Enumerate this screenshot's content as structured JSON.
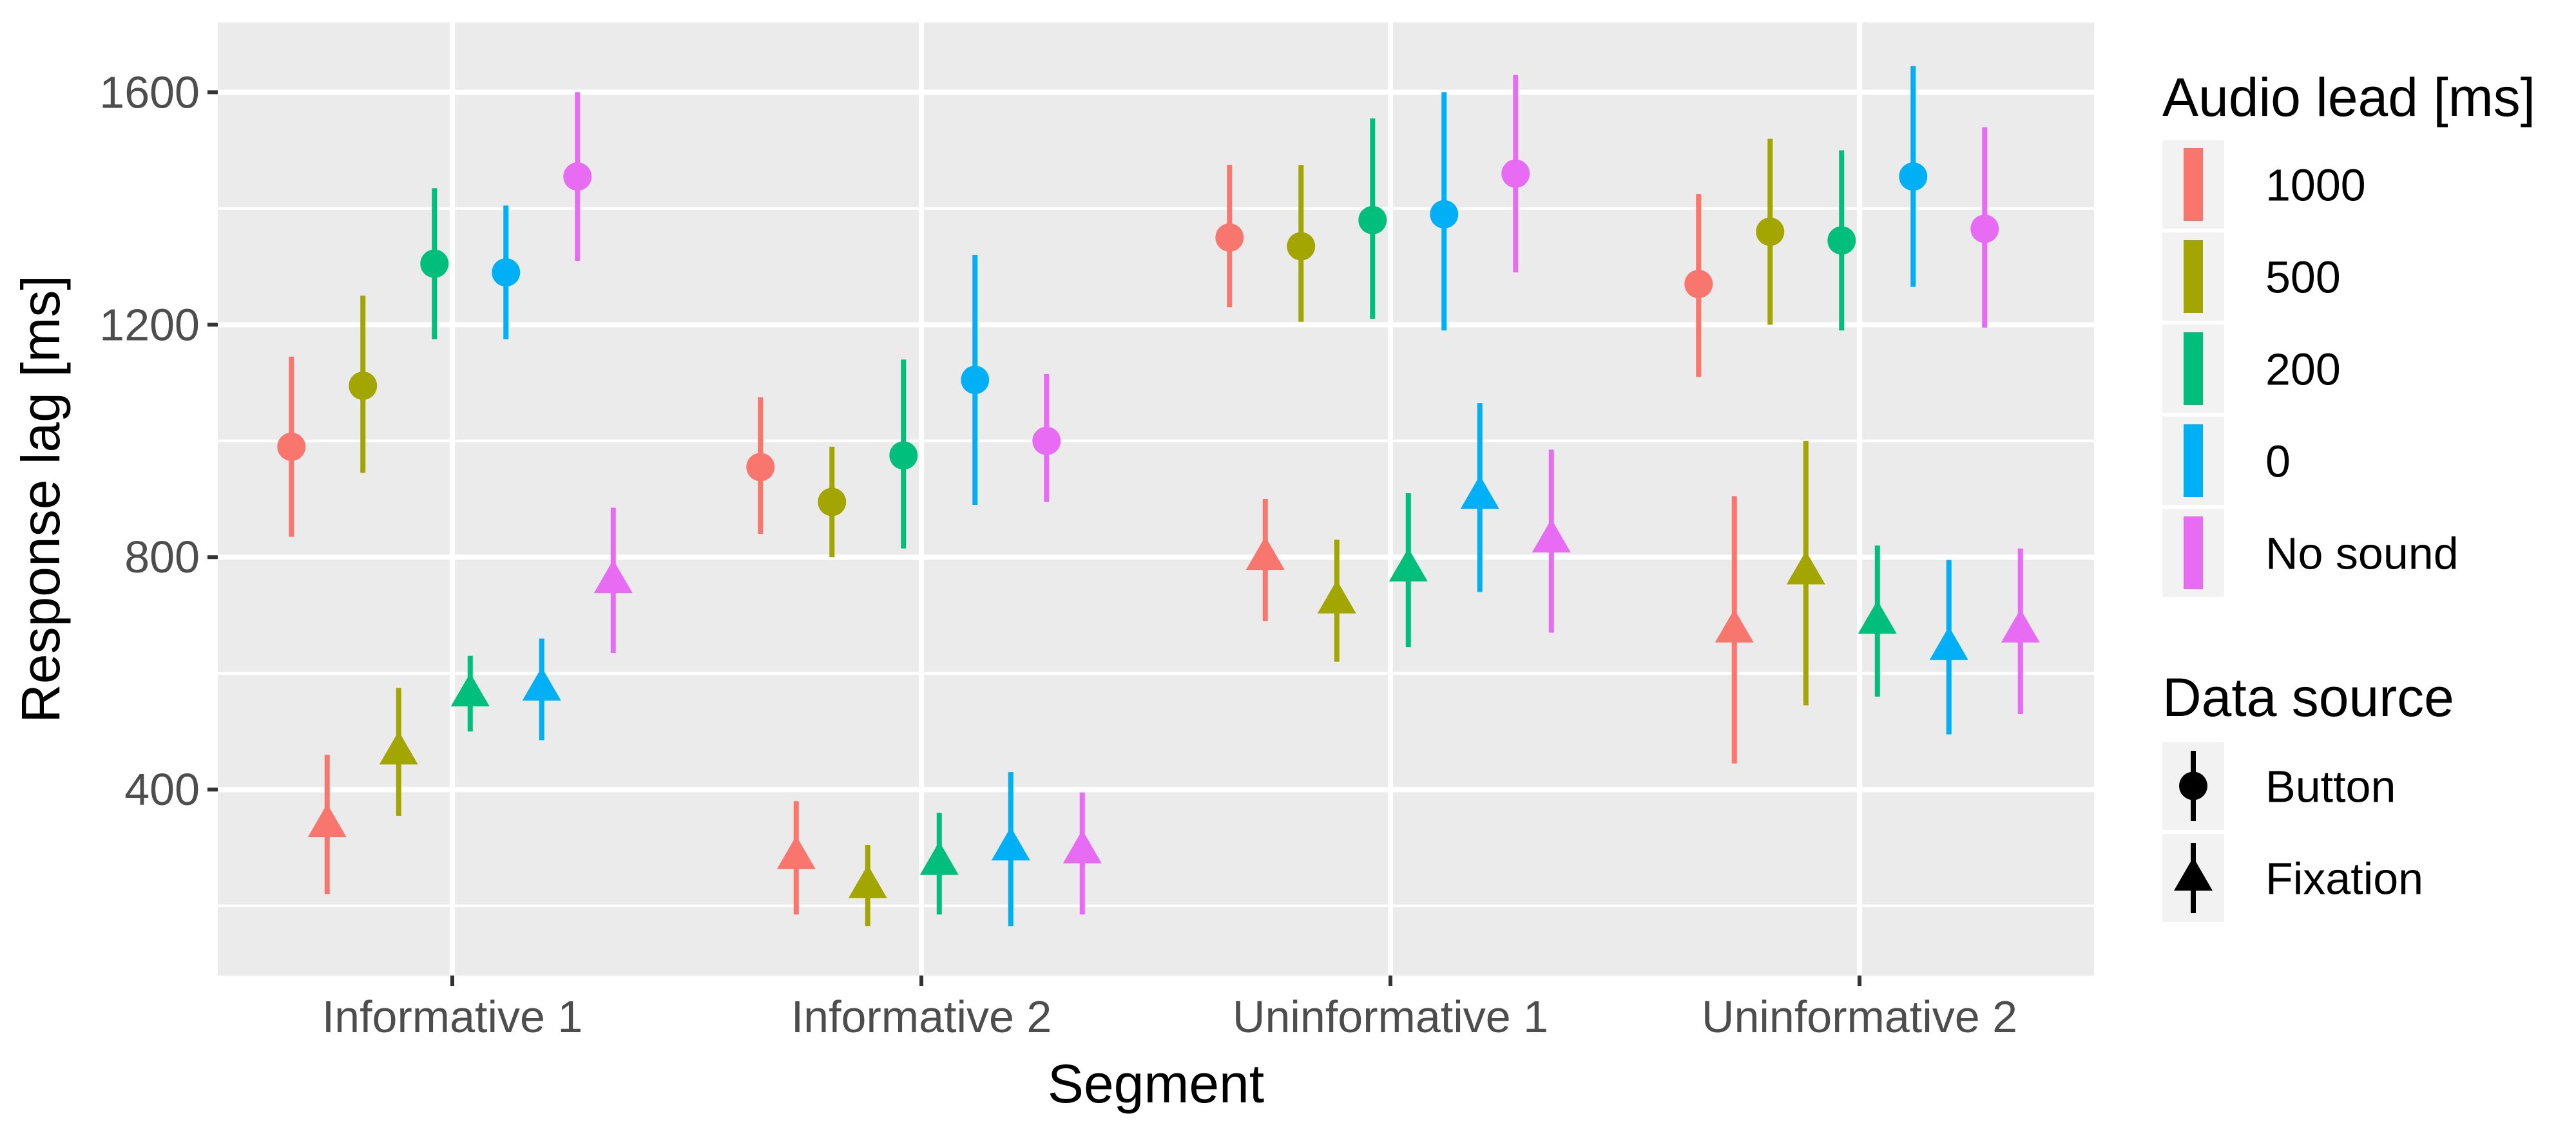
{
  "chart_data": {
    "type": "scatter",
    "subtype": "pointrange",
    "title": "",
    "xlabel": "Segment",
    "ylabel": "Response lag [ms]",
    "categories": [
      "Informative 1",
      "Informative 2",
      "Uninformative 1",
      "Uninformative 2"
    ],
    "ylim": [
      80,
      1720
    ],
    "yticks": [
      400,
      800,
      1200,
      1600
    ],
    "y_tick_labels": [
      "400",
      "800",
      "1200",
      "1600"
    ],
    "grid": true,
    "legend_position": "right",
    "color_legend": {
      "title": "Audio lead [ms]",
      "entries": [
        {
          "label": "1000",
          "color": "#F8766D"
        },
        {
          "label": "500",
          "color": "#A3A500"
        },
        {
          "label": "200",
          "color": "#00BF7D"
        },
        {
          "label": "0",
          "color": "#00B0F6"
        },
        {
          "label": "No sound",
          "color": "#E76BF3"
        }
      ]
    },
    "shape_legend": {
      "title": "Data source",
      "entries": [
        {
          "label": "Button",
          "shape": "circle"
        },
        {
          "label": "Fixation",
          "shape": "triangle"
        }
      ]
    },
    "series": [
      {
        "audio_lead": "1000",
        "source": "Button",
        "mean": [
          990,
          955,
          1350,
          1270
        ],
        "low": [
          835,
          840,
          1230,
          1110
        ],
        "high": [
          1145,
          1075,
          1475,
          1425
        ]
      },
      {
        "audio_lead": "500",
        "source": "Button",
        "mean": [
          1095,
          895,
          1335,
          1360
        ],
        "low": [
          945,
          800,
          1205,
          1200
        ],
        "high": [
          1250,
          990,
          1475,
          1520
        ]
      },
      {
        "audio_lead": "200",
        "source": "Button",
        "mean": [
          1305,
          975,
          1380,
          1345
        ],
        "low": [
          1175,
          815,
          1210,
          1190
        ],
        "high": [
          1435,
          1140,
          1555,
          1500
        ]
      },
      {
        "audio_lead": "0",
        "source": "Button",
        "mean": [
          1290,
          1105,
          1390,
          1455
        ],
        "low": [
          1175,
          890,
          1190,
          1265
        ],
        "high": [
          1405,
          1320,
          1600,
          1645
        ]
      },
      {
        "audio_lead": "No sound",
        "source": "Button",
        "mean": [
          1455,
          1000,
          1460,
          1365
        ],
        "low": [
          1310,
          895,
          1290,
          1195
        ],
        "high": [
          1600,
          1115,
          1630,
          1540
        ]
      },
      {
        "audio_lead": "1000",
        "source": "Fixation",
        "mean": [
          340,
          285,
          800,
          675
        ],
        "low": [
          220,
          185,
          690,
          445
        ],
        "high": [
          460,
          380,
          900,
          905
        ]
      },
      {
        "audio_lead": "500",
        "source": "Fixation",
        "mean": [
          465,
          235,
          725,
          775
        ],
        "low": [
          355,
          165,
          620,
          545
        ],
        "high": [
          575,
          305,
          830,
          1000
        ]
      },
      {
        "audio_lead": "200",
        "source": "Fixation",
        "mean": [
          565,
          275,
          780,
          690
        ],
        "low": [
          500,
          185,
          645,
          560
        ],
        "high": [
          630,
          360,
          910,
          820
        ]
      },
      {
        "audio_lead": "0",
        "source": "Fixation",
        "mean": [
          575,
          300,
          905,
          645
        ],
        "low": [
          485,
          165,
          740,
          495
        ],
        "high": [
          660,
          430,
          1065,
          795
        ]
      },
      {
        "audio_lead": "No sound",
        "source": "Fixation",
        "mean": [
          760,
          295,
          830,
          675
        ],
        "low": [
          635,
          185,
          670,
          530
        ],
        "high": [
          885,
          395,
          985,
          815
        ]
      }
    ]
  }
}
